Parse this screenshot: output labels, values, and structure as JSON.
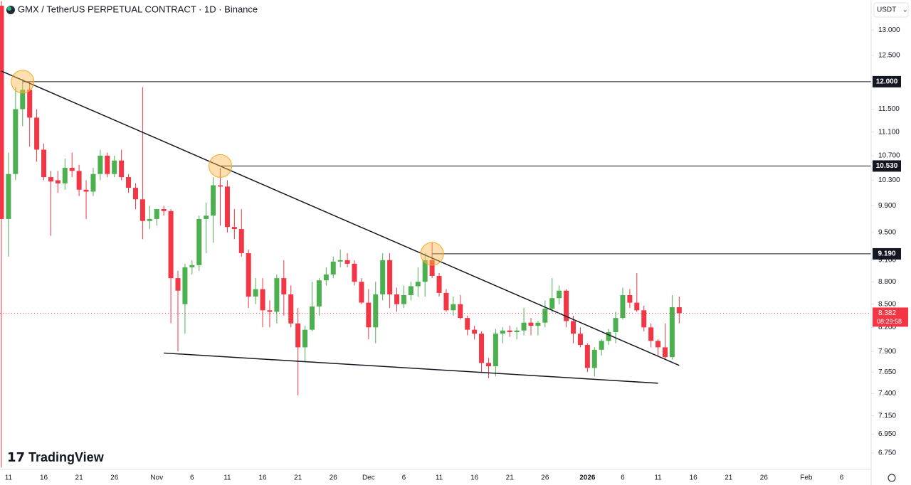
{
  "header": {
    "title": "GMX / TetherUS PERPETUAL CONTRACT · 1D · Binance",
    "currency": "USDT",
    "brand": "TradingView"
  },
  "chart_data": {
    "type": "candlestick",
    "categories": [
      null,
      "11",
      null,
      null,
      null,
      null,
      "16",
      null,
      null,
      null,
      null,
      "21",
      null,
      null,
      null,
      null,
      "26",
      null,
      null,
      null,
      null,
      null,
      "Nov",
      null,
      null,
      null,
      null,
      "6",
      null,
      null,
      null,
      null,
      "11",
      null,
      null,
      null,
      null,
      "16",
      null,
      null,
      null,
      null,
      "21",
      null,
      null,
      null,
      null,
      "26",
      null,
      null,
      null,
      null,
      "Dec",
      null,
      null,
      null,
      null,
      "6",
      null,
      null,
      null,
      null,
      "11",
      null,
      null,
      null,
      null,
      "16",
      null,
      null,
      null,
      null,
      "21",
      null,
      null,
      null,
      null,
      "26",
      null,
      null,
      null,
      null,
      null,
      "2026",
      null,
      null,
      null,
      null,
      "6",
      null,
      null,
      null,
      null,
      "11",
      null,
      null,
      null,
      null,
      "16",
      null,
      null,
      null,
      null,
      "21",
      null,
      null,
      null,
      null,
      "26",
      null,
      null,
      null,
      null,
      null,
      "Feb",
      null,
      null,
      null,
      null,
      "6"
    ],
    "open": [
      13.5,
      9.7,
      10.4,
      11.5,
      11.85,
      11.35,
      10.8,
      10.35,
      10.3,
      10.25,
      10.5,
      10.45,
      10.15,
      10.12,
      10.4,
      10.7,
      10.4,
      10.62,
      10.35,
      10.18,
      10.0,
      9.67,
      9.7,
      9.85,
      9.82,
      8.85,
      8.5,
      9.0,
      9.03,
      9.7,
      9.75,
      10.22,
      10.2,
      9.58,
      9.55,
      9.2,
      8.6,
      8.7,
      8.42,
      8.4,
      8.85,
      8.63,
      8.25,
      7.95,
      8.17,
      8.47,
      8.82,
      8.9,
      9.08,
      9.1,
      9.05,
      8.8,
      8.52,
      8.2,
      8.63,
      9.1,
      8.63,
      8.5,
      8.62,
      8.74,
      8.8,
      9.1,
      8.88,
      8.65,
      8.42,
      8.5,
      8.32,
      8.17,
      8.12,
      7.76,
      7.72,
      8.12,
      8.16,
      8.14,
      8.16,
      8.26,
      8.22,
      8.26,
      8.44,
      8.58,
      8.68,
      8.28,
      8.12,
      7.98,
      7.7,
      7.92,
      8.03,
      8.14,
      8.32,
      8.62,
      8.52,
      8.42,
      8.2,
      8.03,
      7.95,
      7.83,
      8.46,
      null,
      null,
      null,
      null,
      null,
      null,
      null,
      null,
      null,
      null,
      null,
      null,
      null,
      null,
      null,
      null,
      null,
      null,
      null,
      null,
      null,
      null,
      null
    ],
    "high": [
      13.6,
      10.75,
      11.9,
      12.05,
      12.0,
      11.5,
      10.9,
      10.45,
      10.45,
      10.65,
      10.75,
      10.55,
      10.3,
      10.5,
      10.8,
      10.75,
      10.7,
      10.8,
      10.4,
      10.25,
      11.9,
      9.9,
      9.85,
      9.9,
      9.85,
      8.95,
      9.05,
      9.1,
      9.75,
      9.95,
      10.35,
      10.5,
      10.3,
      9.85,
      9.85,
      9.25,
      8.85,
      8.85,
      8.55,
      8.9,
      9.1,
      8.75,
      8.45,
      8.22,
      8.8,
      8.85,
      9.0,
      9.15,
      9.25,
      9.2,
      9.1,
      8.85,
      8.7,
      8.8,
      9.2,
      9.2,
      8.72,
      8.75,
      8.8,
      9.0,
      9.2,
      9.35,
      8.92,
      8.7,
      8.6,
      8.62,
      8.35,
      8.22,
      8.15,
      7.82,
      8.18,
      8.2,
      8.22,
      8.2,
      8.45,
      8.32,
      8.28,
      8.55,
      8.85,
      8.75,
      8.7,
      8.35,
      8.2,
      8.0,
      7.95,
      8.05,
      8.18,
      8.4,
      8.72,
      8.7,
      8.92,
      8.48,
      8.25,
      8.05,
      8.25,
      8.62,
      8.6,
      null,
      null,
      null,
      null,
      null,
      null,
      null,
      null,
      null,
      null,
      null,
      null,
      null,
      null,
      null,
      null,
      null,
      null,
      null,
      null,
      null,
      null,
      null
    ],
    "low": [
      6.6,
      9.15,
      10.3,
      11.2,
      10.85,
      10.6,
      10.3,
      9.45,
      10.1,
      10.15,
      10.35,
      10.05,
      9.7,
      10.05,
      10.3,
      10.35,
      10.35,
      10.3,
      10.1,
      9.85,
      9.4,
      9.55,
      9.6,
      9.75,
      8.25,
      7.9,
      8.12,
      8.9,
      8.95,
      9.2,
      9.35,
      9.6,
      9.5,
      9.4,
      9.15,
      8.45,
      8.5,
      8.2,
      8.2,
      8.25,
      8.35,
      8.2,
      7.38,
      7.77,
      8.15,
      8.35,
      8.75,
      8.85,
      9.0,
      9.0,
      8.75,
      8.5,
      8.05,
      8.0,
      8.55,
      8.45,
      8.4,
      8.45,
      8.55,
      8.6,
      8.6,
      8.85,
      8.6,
      8.4,
      8.35,
      8.3,
      8.1,
      8.05,
      7.65,
      7.58,
      7.6,
      8.0,
      8.08,
      8.05,
      8.1,
      8.1,
      8.1,
      8.2,
      8.4,
      8.5,
      8.2,
      8.0,
      7.95,
      7.65,
      7.6,
      7.85,
      7.98,
      8.0,
      8.3,
      8.45,
      8.4,
      8.15,
      7.95,
      7.85,
      7.8,
      7.8,
      8.25,
      null,
      null,
      null,
      null,
      null,
      null,
      null,
      null,
      null,
      null,
      null,
      null,
      null,
      null,
      null,
      null,
      null,
      null,
      null,
      null,
      null,
      null,
      null
    ],
    "close": [
      9.7,
      10.4,
      11.5,
      11.85,
      11.35,
      10.8,
      10.35,
      10.28,
      10.25,
      10.5,
      10.45,
      10.15,
      10.12,
      10.4,
      10.7,
      10.4,
      10.62,
      10.35,
      10.18,
      10.0,
      9.67,
      9.7,
      9.85,
      9.82,
      8.85,
      8.68,
      9.0,
      9.03,
      9.7,
      9.75,
      10.22,
      10.2,
      9.58,
      9.55,
      9.2,
      8.6,
      8.7,
      8.42,
      8.4,
      8.85,
      8.63,
      8.25,
      7.95,
      8.17,
      8.47,
      8.82,
      8.9,
      9.08,
      9.1,
      9.05,
      8.8,
      8.52,
      8.2,
      8.63,
      9.1,
      8.63,
      8.5,
      8.62,
      8.74,
      8.8,
      9.1,
      8.88,
      8.65,
      8.42,
      8.5,
      8.32,
      8.17,
      8.12,
      7.76,
      7.72,
      8.12,
      8.16,
      8.14,
      8.16,
      8.26,
      8.22,
      8.26,
      8.44,
      8.58,
      8.68,
      8.28,
      8.12,
      7.98,
      7.7,
      7.92,
      8.03,
      8.14,
      8.32,
      8.62,
      8.52,
      8.42,
      8.2,
      8.03,
      7.95,
      7.83,
      8.46,
      8.382,
      null,
      null,
      null,
      null,
      null,
      null,
      null,
      null,
      null,
      null,
      null,
      null,
      null,
      null,
      null,
      null,
      null,
      null,
      null,
      null,
      null,
      null,
      null
    ],
    "up_color": "#4caf50",
    "down_color": "#f23645",
    "ylim": [
      6.58,
      13.62
    ],
    "log_scale": true,
    "yticks": [
      {
        "value": 13,
        "label": "13.000"
      },
      {
        "value": 12.5,
        "label": "12.500"
      },
      {
        "value": 12,
        "label": "12.000"
      },
      {
        "value": 11.5,
        "label": "11.500"
      },
      {
        "value": 11.1,
        "label": "11.100"
      },
      {
        "value": 10.7,
        "label": "10.700"
      },
      {
        "value": 10.3,
        "label": "10.300"
      },
      {
        "value": 9.9,
        "label": "9.900"
      },
      {
        "value": 9.5,
        "label": "9.500"
      },
      {
        "value": 9.1,
        "label": "9.100"
      },
      {
        "value": 8.8,
        "label": "8.800"
      },
      {
        "value": 8.5,
        "label": "8.500"
      },
      {
        "value": 8.2,
        "label": "8.200"
      },
      {
        "value": 7.9,
        "label": "7.900"
      },
      {
        "value": 7.65,
        "label": "7.650"
      },
      {
        "value": 7.4,
        "label": "7.400"
      },
      {
        "value": 7.15,
        "label": "7.150"
      },
      {
        "value": 6.95,
        "label": "6.950"
      },
      {
        "value": 6.75,
        "label": "6.750"
      }
    ],
    "levels": [
      {
        "value": 12,
        "label": "12.000",
        "from": 3
      },
      {
        "value": 10.53,
        "label": "10.530",
        "from": 31
      },
      {
        "value": 9.19,
        "label": "9.190",
        "from": 61
      }
    ],
    "trendlines": [
      {
        "x": [
          0,
          96
        ],
        "y": [
          12.2,
          7.73
        ]
      },
      {
        "x": [
          23,
          93
        ],
        "y": [
          7.88,
          7.52
        ]
      }
    ],
    "last_price": {
      "value": 8.382,
      "label": "8.382",
      "countdown": "08:29:58"
    }
  }
}
